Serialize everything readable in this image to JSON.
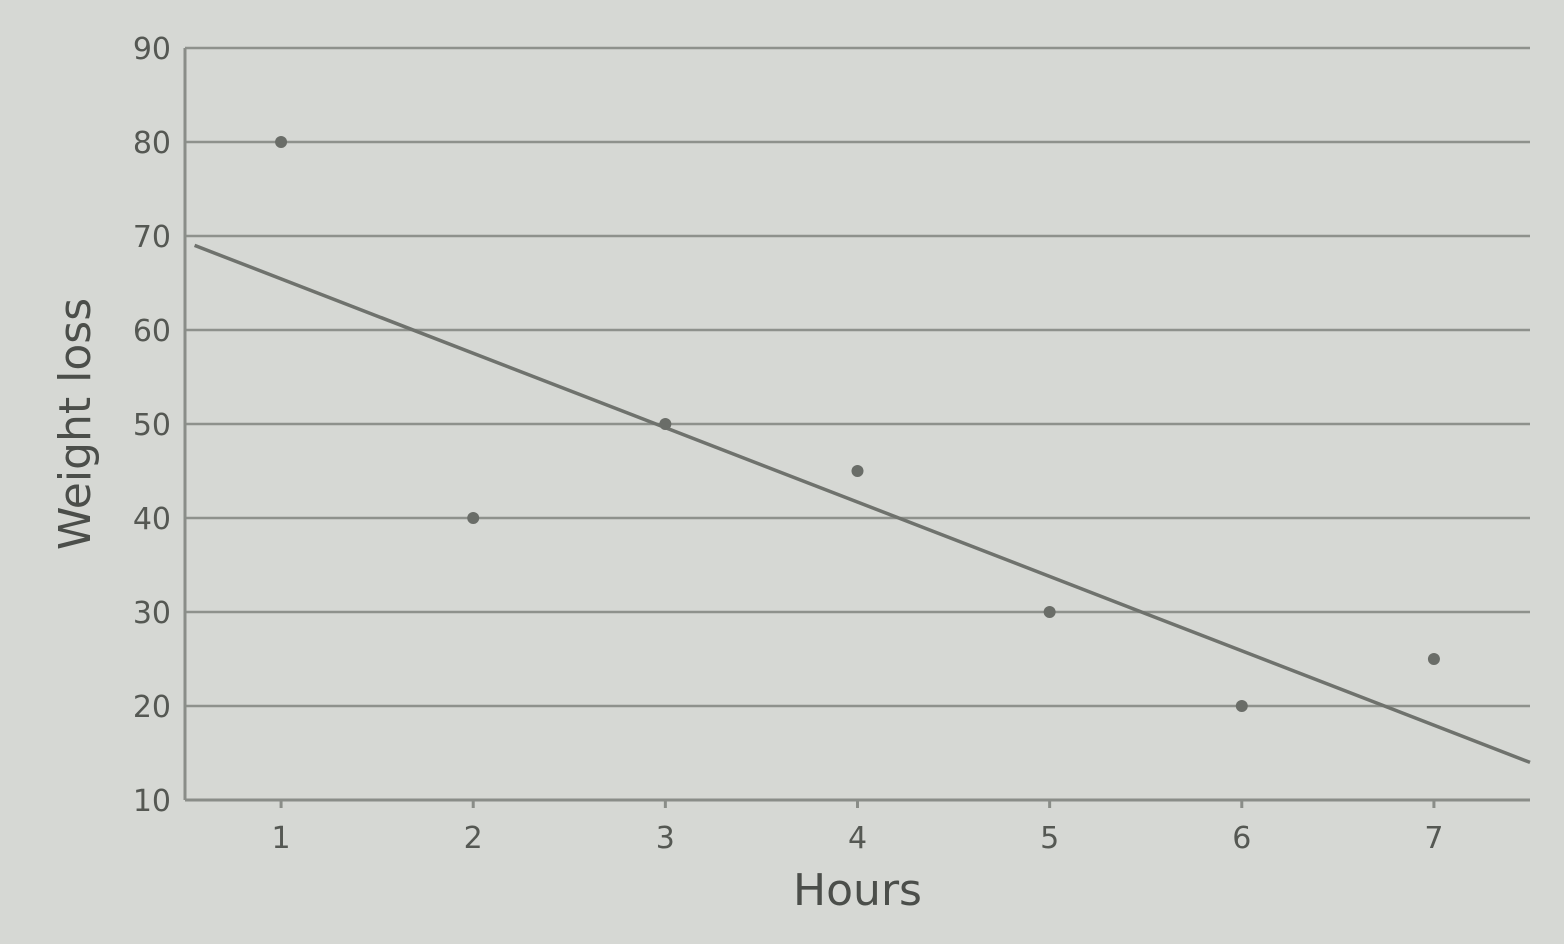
{
  "chart_data": {
    "type": "scatter",
    "title": "",
    "xlabel": "Hours",
    "ylabel": "Weight loss",
    "x_ticks": [
      "1",
      "2",
      "3",
      "4",
      "5",
      "6",
      "7"
    ],
    "y_ticks": [
      "10",
      "20",
      "30",
      "40",
      "50",
      "60",
      "70",
      "80",
      "90"
    ],
    "xlim": [
      0.5,
      7.5
    ],
    "ylim": [
      10,
      90
    ],
    "grid": "horizontal",
    "legend": "none",
    "series": [
      {
        "type": "scatter",
        "points": [
          {
            "x": 1,
            "y": 80
          },
          {
            "x": 2,
            "y": 40
          },
          {
            "x": 3,
            "y": 50
          },
          {
            "x": 4,
            "y": 45
          },
          {
            "x": 5,
            "y": 30
          },
          {
            "x": 6,
            "y": 20
          },
          {
            "x": 7,
            "y": 25
          }
        ]
      },
      {
        "type": "line",
        "points": [
          {
            "x": 0.55,
            "y": 69
          },
          {
            "x": 7.5,
            "y": 14
          }
        ]
      }
    ],
    "colors": {
      "background": "#d6d8d4",
      "grid": "#8e918c",
      "line": "#6f726d",
      "points": "#6a6d68",
      "text": "#4b4e4a"
    }
  }
}
